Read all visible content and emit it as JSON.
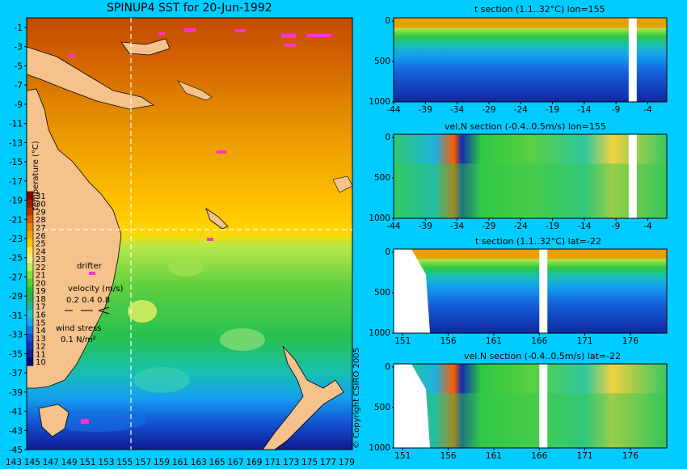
{
  "map": {
    "title": "SPINUP4 SST for 20-Jun-1992",
    "lon_ticks": [
      "143",
      "145",
      "147",
      "149",
      "151",
      "153",
      "155",
      "157",
      "159",
      "161",
      "163",
      "165",
      "167",
      "169",
      "171",
      "173",
      "175",
      "177",
      "179"
    ],
    "lat_ticks": [
      "-1",
      "-3",
      "-5",
      "-7",
      "-9",
      "-11",
      "-13",
      "-15",
      "-17",
      "-19",
      "-21",
      "-23",
      "-25",
      "-27",
      "-29",
      "-31",
      "-33",
      "-35",
      "-37",
      "-39",
      "-41",
      "-43",
      "-45"
    ],
    "colorbar": {
      "label": "temperature (°C)",
      "ticks": [
        "31",
        "30",
        "29",
        "28",
        "27",
        "26",
        "25",
        "24",
        "23",
        "22",
        "21",
        "20",
        "19",
        "18",
        "17",
        "16",
        "15",
        "14",
        "13",
        "12",
        "11",
        "10"
      ],
      "colors": [
        "#8b0000",
        "#a01a00",
        "#c43200",
        "#d95a00",
        "#e88400",
        "#f5a300",
        "#ffc400",
        "#ffe24a",
        "#f0f080",
        "#bdf05a",
        "#88e040",
        "#4fd23a",
        "#20c43c",
        "#20b45a",
        "#1cb4a0",
        "#14c8d2",
        "#14aaf0",
        "#1478e6",
        "#1450d2",
        "#1430b4",
        "#141e96",
        "#0a0a78"
      ]
    },
    "legend": {
      "drifter": "drifter",
      "velocity": "velocity (m/s)",
      "velocity_scale": "0.2 0.4 0.8",
      "wind_stress": "wind stress",
      "wind_scale": "0.1 N/m²"
    },
    "crosshair": {
      "lon": 155,
      "lat": -22
    },
    "colors": {
      "land": "#f5c28c",
      "drifter": "#ff33cc",
      "crosshair": "#ffffff"
    }
  },
  "copyright": "© Copyright CSIRO 2005",
  "sections": [
    {
      "title": "t section (1.1..32°C) lon=155",
      "y_ticks": [
        "0",
        "500",
        "1000"
      ],
      "x_ticks": [
        "-44",
        "-39",
        "-34",
        "-29",
        "-24",
        "-19",
        "-14",
        "-9",
        "-4"
      ],
      "gap_x": -7
    },
    {
      "title": "vel.N section (-0.4..0.5m/s) lon=155",
      "y_ticks": [
        "0",
        "500",
        "1000"
      ],
      "x_ticks": [
        "-44",
        "-39",
        "-34",
        "-29",
        "-24",
        "-19",
        "-14",
        "-9",
        "-4"
      ],
      "gap_x": -7
    },
    {
      "title": "t section (1.1..32°C) lat=-22",
      "y_ticks": [
        "0",
        "500",
        "1000"
      ],
      "x_ticks": [
        "151",
        "156",
        "161",
        "166",
        "171",
        "176"
      ],
      "gap_x": 166
    },
    {
      "title": "vel.N section (-0.4..0.5m/s) lat=-22",
      "y_ticks": [
        "0",
        "500",
        "1000"
      ],
      "x_ticks": [
        "151",
        "156",
        "161",
        "166",
        "171",
        "176"
      ],
      "gap_x": 166
    }
  ]
}
